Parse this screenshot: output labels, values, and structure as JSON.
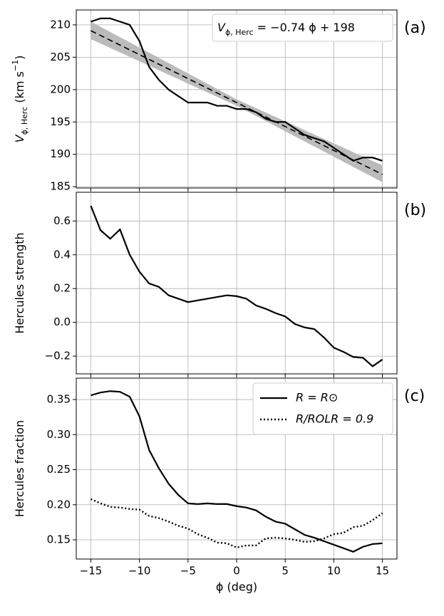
{
  "chart_data": [
    {
      "type": "line",
      "panel_label": "(a)",
      "ylabel": [
        "V",
        "ϕ, Herc",
        " (km s",
        "−1",
        ")"
      ],
      "annotation": [
        "V",
        "ϕ, Herc",
        " = −0.74 ϕ + 198"
      ],
      "x": [
        -15,
        -14,
        -13,
        -12,
        -11,
        -10,
        -9,
        -8,
        -7,
        -6,
        -5,
        -4,
        -3,
        -2,
        -1,
        0,
        1,
        2,
        3,
        4,
        5,
        6,
        7,
        8,
        9,
        10,
        11,
        12,
        13,
        14,
        15
      ],
      "series": [
        {
          "color": "#000000",
          "style": "solid",
          "values": [
            210.5,
            211,
            211,
            210.5,
            210,
            207.5,
            203.5,
            201.5,
            200,
            199,
            198,
            198,
            198,
            197.5,
            197.5,
            197,
            197,
            196.5,
            195.5,
            195,
            195,
            194,
            193,
            192.5,
            192,
            191,
            190,
            189,
            189.5,
            189.5,
            189
          ]
        },
        {
          "color": "#000000",
          "style": "dashed",
          "x": [
            -15,
            15
          ],
          "values": [
            209.1,
            186.9
          ]
        }
      ],
      "band": {
        "x": [
          -15,
          0,
          15
        ],
        "upper": [
          210.5,
          198.5,
          188.3
        ],
        "lower": [
          207.8,
          197.5,
          185.7
        ],
        "color": "#bbbbbb"
      },
      "xlim": [
        -16.5,
        16.5
      ],
      "xticks": [
        -15,
        -10,
        -5,
        0,
        5,
        10,
        15
      ],
      "ylim": [
        184.8,
        212.3
      ],
      "yticks": [
        185,
        190,
        195,
        200,
        205,
        210
      ],
      "grid": true
    },
    {
      "type": "line",
      "panel_label": "(b)",
      "ylabel": [
        "Hercules strength"
      ],
      "x": [
        -15,
        -14,
        -13,
        -12,
        -11,
        -10,
        -9,
        -8,
        -7,
        -6,
        -5,
        -4,
        -3,
        -2,
        -1,
        0,
        1,
        2,
        3,
        4,
        5,
        6,
        7,
        8,
        9,
        10,
        11,
        12,
        13,
        14,
        15
      ],
      "series": [
        {
          "color": "#000000",
          "style": "solid",
          "values": [
            0.69,
            0.545,
            0.495,
            0.55,
            0.4,
            0.3,
            0.23,
            0.21,
            0.16,
            0.14,
            0.12,
            0.13,
            0.14,
            0.15,
            0.16,
            0.155,
            0.14,
            0.1,
            0.08,
            0.055,
            0.035,
            -0.01,
            -0.03,
            -0.04,
            -0.09,
            -0.15,
            -0.175,
            -0.205,
            -0.21,
            -0.26,
            -0.22
          ]
        }
      ],
      "xlim": [
        -16.5,
        16.5
      ],
      "xticks": [
        -15,
        -10,
        -5,
        0,
        5,
        10,
        15
      ],
      "ylim": [
        -0.305,
        0.77
      ],
      "yticks": [
        {
          "value": -0.2,
          "label": "−0.2"
        },
        {
          "value": 0,
          "label": "0.0"
        },
        0.2,
        0.4,
        0.6
      ],
      "grid": true
    },
    {
      "type": "line",
      "panel_label": "(c)",
      "ylabel": [
        "Hercules fraction"
      ],
      "xlabel": "ϕ (deg)",
      "legend": "upper right",
      "x": [
        -15,
        -14,
        -13,
        -12,
        -11,
        -10,
        -9,
        -8,
        -7,
        -6,
        -5,
        -4,
        -3,
        -2,
        -1,
        0,
        1,
        2,
        3,
        4,
        5,
        6,
        7,
        8,
        9,
        10,
        11,
        12,
        13,
        14,
        15
      ],
      "series": [
        {
          "name": "R = R⊙",
          "color": "#000000",
          "style": "solid",
          "values": [
            0.356,
            0.36,
            0.362,
            0.361,
            0.354,
            0.326,
            0.278,
            0.252,
            0.23,
            0.214,
            0.202,
            0.201,
            0.202,
            0.201,
            0.201,
            0.198,
            0.196,
            0.192,
            0.183,
            0.176,
            0.173,
            0.165,
            0.157,
            0.153,
            0.148,
            0.143,
            0.138,
            0.133,
            0.14,
            0.144,
            0.145
          ]
        },
        {
          "name": "R/ROLR = 0.9",
          "color": "#000000",
          "style": "dotted",
          "values": [
            0.208,
            0.202,
            0.197,
            0.196,
            0.194,
            0.193,
            0.184,
            0.181,
            0.176,
            0.17,
            0.166,
            0.158,
            0.153,
            0.146,
            0.145,
            0.139,
            0.142,
            0.142,
            0.152,
            0.153,
            0.152,
            0.15,
            0.147,
            0.148,
            0.152,
            0.158,
            0.16,
            0.168,
            0.17,
            0.178,
            0.188
          ]
        }
      ],
      "xlim": [
        -16.5,
        16.5
      ],
      "xticks": [
        {
          "value": -15,
          "label": "−15"
        },
        {
          "value": -10,
          "label": "−10"
        },
        {
          "value": -5,
          "label": "−5"
        },
        0,
        5,
        10,
        15
      ],
      "ylim": [
        0.1226,
        0.3805
      ],
      "yticks": [
        0.15,
        {
          "value": 0.2,
          "label": "0.20"
        },
        0.25,
        {
          "value": 0.3,
          "label": "0.30"
        },
        0.35
      ],
      "grid": true
    }
  ]
}
